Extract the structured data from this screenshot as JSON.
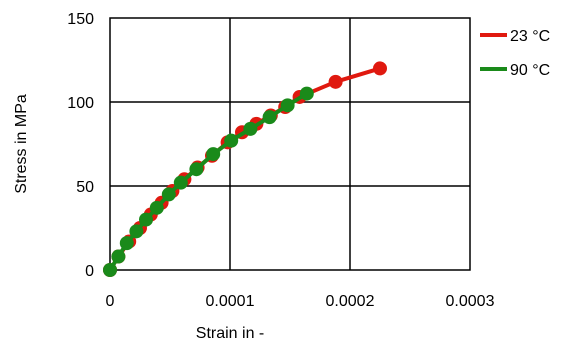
{
  "chart_data": {
    "type": "line",
    "xlabel": "Strain in -",
    "ylabel": "Stress in MPa",
    "xlim": [
      0,
      0.0003
    ],
    "ylim": [
      0,
      150
    ],
    "x_ticks": [
      "0",
      "0.0001",
      "0.0002",
      "0.0003"
    ],
    "y_ticks": [
      "0",
      "50",
      "100",
      "150"
    ],
    "x_tick_values": [
      0,
      0.0001,
      0.0002,
      0.0003
    ],
    "y_tick_values": [
      0,
      50,
      100,
      150
    ],
    "grid": true,
    "legend_position": "top-right",
    "series": [
      {
        "name": "23 °C",
        "color": "#e0190f",
        "x": [
          0,
          7e-06,
          1.6e-05,
          2.5e-05,
          3.4e-05,
          4.3e-05,
          5.2e-05,
          6.2e-05,
          7.3e-05,
          8.5e-05,
          9.8e-05,
          0.00011,
          0.000122,
          0.000134,
          0.000146,
          0.000158,
          0.000188,
          0.000225
        ],
        "y": [
          0,
          8,
          17,
          25,
          33,
          40,
          47,
          54,
          61,
          68,
          76,
          82,
          87,
          92,
          97,
          103,
          112,
          120
        ]
      },
      {
        "name": "90 °C",
        "color": "#1a8a1a",
        "x": [
          0,
          7e-06,
          1.4e-05,
          2.2e-05,
          3e-05,
          3.9e-05,
          4.9e-05,
          5.9e-05,
          7.2e-05,
          8.6e-05,
          0.000101,
          0.000117,
          0.000133,
          0.000148,
          0.000164
        ],
        "y": [
          0,
          8,
          16,
          23,
          30,
          37,
          45,
          52,
          60,
          69,
          77,
          84,
          91,
          98,
          105
        ]
      }
    ]
  }
}
